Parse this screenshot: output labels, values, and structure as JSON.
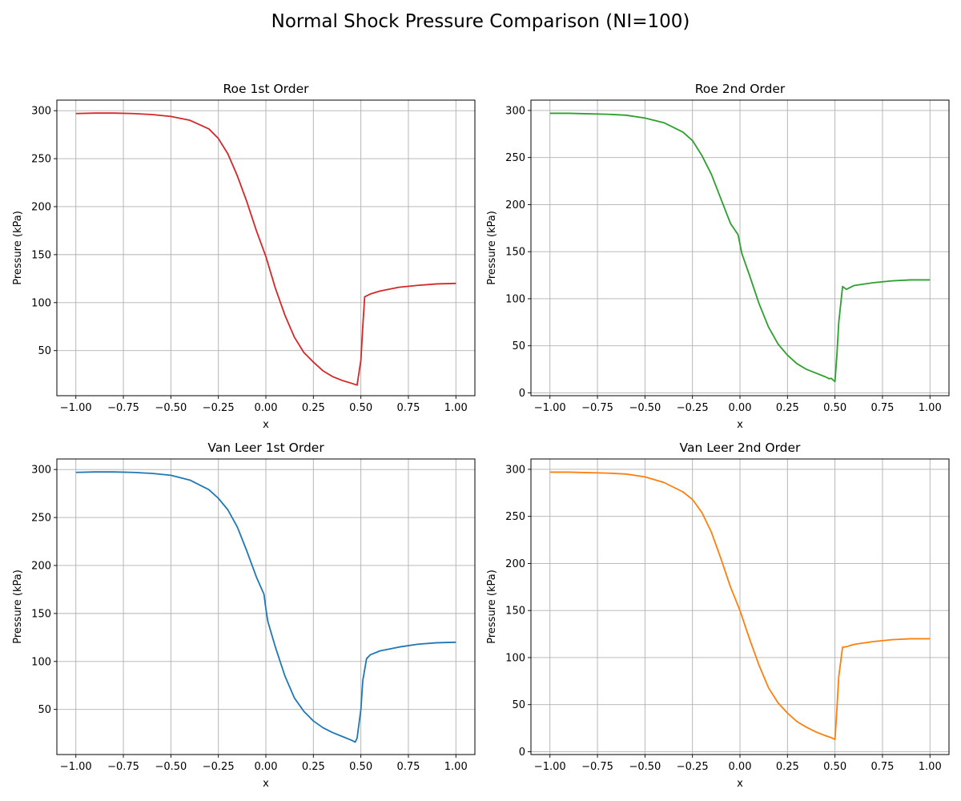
{
  "figure": {
    "title": "Normal Shock Pressure Comparison (NI=100)"
  },
  "chart_data": [
    {
      "type": "line",
      "title": "Roe 1st Order",
      "xlabel": "x",
      "ylabel": "Pressure (kPa)",
      "color": "#d62728",
      "xlim": [
        -1.1,
        1.1
      ],
      "ylim": [
        3,
        311
      ],
      "xticks": [
        -1.0,
        -0.75,
        -0.5,
        -0.25,
        0.0,
        0.25,
        0.5,
        0.75,
        1.0
      ],
      "xtick_labels": [
        "−1.00",
        "−0.75",
        "−0.50",
        "−0.25",
        "0.00",
        "0.25",
        "0.50",
        "0.75",
        "1.00"
      ],
      "yticks": [
        50,
        100,
        150,
        200,
        250,
        300
      ],
      "ytick_labels": [
        "50",
        "100",
        "150",
        "200",
        "250",
        "300"
      ],
      "grid": true,
      "series": [
        {
          "x": [
            -1.0,
            -0.9,
            -0.8,
            -0.7,
            -0.6,
            -0.5,
            -0.4,
            -0.3,
            -0.25,
            -0.2,
            -0.15,
            -0.1,
            -0.05,
            0.0,
            0.05,
            0.1,
            0.15,
            0.2,
            0.25,
            0.3,
            0.35,
            0.4,
            0.45,
            0.48,
            0.5,
            0.51,
            0.52,
            0.55,
            0.6,
            0.7,
            0.8,
            0.9,
            1.0
          ],
          "y": [
            297,
            297.5,
            297.5,
            297,
            296,
            294,
            290,
            281,
            271,
            255,
            232,
            205,
            175,
            148,
            115,
            87,
            64,
            48,
            38,
            29,
            23,
            19,
            16,
            14,
            40,
            75,
            106,
            109,
            112,
            116,
            118,
            119.5,
            120
          ]
        }
      ]
    },
    {
      "type": "line",
      "title": "Roe 2nd Order",
      "xlabel": "x",
      "ylabel": "Pressure (kPa)",
      "color": "#2ca02c",
      "xlim": [
        -1.1,
        1.1
      ],
      "ylim": [
        -3,
        311
      ],
      "xticks": [
        -1.0,
        -0.75,
        -0.5,
        -0.25,
        0.0,
        0.25,
        0.5,
        0.75,
        1.0
      ],
      "xtick_labels": [
        "−1.00",
        "−0.75",
        "−0.50",
        "−0.25",
        "0.00",
        "0.25",
        "0.50",
        "0.75",
        "1.00"
      ],
      "yticks": [
        0,
        50,
        100,
        150,
        200,
        250,
        300
      ],
      "ytick_labels": [
        "0",
        "50",
        "100",
        "150",
        "200",
        "250",
        "300"
      ],
      "grid": true,
      "series": [
        {
          "x": [
            -1.0,
            -0.9,
            -0.8,
            -0.7,
            -0.6,
            -0.5,
            -0.4,
            -0.3,
            -0.25,
            -0.2,
            -0.15,
            -0.1,
            -0.05,
            -0.01,
            0.0,
            0.01,
            0.05,
            0.1,
            0.15,
            0.2,
            0.25,
            0.3,
            0.35,
            0.4,
            0.45,
            0.47,
            0.48,
            0.5,
            0.51,
            0.52,
            0.54,
            0.56,
            0.58,
            0.6,
            0.7,
            0.8,
            0.9,
            1.0
          ],
          "y": [
            297,
            297,
            296.5,
            296,
            295,
            292,
            287,
            277,
            268,
            252,
            232,
            206,
            180,
            168,
            158,
            148,
            125,
            95,
            70,
            52,
            40,
            31,
            25,
            21,
            17,
            15,
            15.5,
            12,
            40,
            75,
            113,
            110,
            112,
            114,
            117,
            119,
            120,
            120
          ]
        }
      ]
    },
    {
      "type": "line",
      "title": "Van Leer 1st Order",
      "xlabel": "x",
      "ylabel": "Pressure (kPa)",
      "color": "#1f77b4",
      "xlim": [
        -1.1,
        1.1
      ],
      "ylim": [
        3,
        311
      ],
      "xticks": [
        -1.0,
        -0.75,
        -0.5,
        -0.25,
        0.0,
        0.25,
        0.5,
        0.75,
        1.0
      ],
      "xtick_labels": [
        "−1.00",
        "−0.75",
        "−0.50",
        "−0.25",
        "0.00",
        "0.25",
        "0.50",
        "0.75",
        "1.00"
      ],
      "yticks": [
        50,
        100,
        150,
        200,
        250,
        300
      ],
      "ytick_labels": [
        "50",
        "100",
        "150",
        "200",
        "250",
        "300"
      ],
      "grid": true,
      "series": [
        {
          "x": [
            -1.0,
            -0.9,
            -0.8,
            -0.7,
            -0.6,
            -0.5,
            -0.4,
            -0.3,
            -0.25,
            -0.2,
            -0.15,
            -0.1,
            -0.05,
            -0.01,
            0.0,
            0.01,
            0.05,
            0.1,
            0.15,
            0.2,
            0.25,
            0.3,
            0.35,
            0.4,
            0.45,
            0.47,
            0.48,
            0.5,
            0.51,
            0.53,
            0.55,
            0.6,
            0.7,
            0.8,
            0.9,
            1.0
          ],
          "y": [
            297,
            297.5,
            297.5,
            297,
            296,
            294,
            289,
            279,
            270,
            258,
            240,
            215,
            188,
            170,
            155,
            142,
            115,
            85,
            62,
            48,
            38,
            31,
            26,
            22,
            18,
            16,
            20,
            50,
            80,
            103,
            107,
            111,
            115,
            118,
            119.5,
            120
          ]
        }
      ]
    },
    {
      "type": "line",
      "title": "Van Leer 2nd Order",
      "xlabel": "x",
      "ylabel": "Pressure (kPa)",
      "color": "#ff7f0e",
      "xlim": [
        -1.1,
        1.1
      ],
      "ylim": [
        -3,
        311
      ],
      "xticks": [
        -1.0,
        -0.75,
        -0.5,
        -0.25,
        0.0,
        0.25,
        0.5,
        0.75,
        1.0
      ],
      "xtick_labels": [
        "−1.00",
        "−0.75",
        "−0.50",
        "−0.25",
        "0.00",
        "0.25",
        "0.50",
        "0.75",
        "1.00"
      ],
      "yticks": [
        0,
        50,
        100,
        150,
        200,
        250,
        300
      ],
      "ytick_labels": [
        "0",
        "50",
        "100",
        "150",
        "200",
        "250",
        "300"
      ],
      "grid": true,
      "series": [
        {
          "x": [
            -1.0,
            -0.9,
            -0.8,
            -0.7,
            -0.6,
            -0.5,
            -0.4,
            -0.3,
            -0.25,
            -0.2,
            -0.15,
            -0.1,
            -0.05,
            0.0,
            0.05,
            0.1,
            0.15,
            0.2,
            0.25,
            0.3,
            0.35,
            0.4,
            0.45,
            0.48,
            0.5,
            0.51,
            0.52,
            0.54,
            0.56,
            0.6,
            0.7,
            0.8,
            0.9,
            1.0
          ],
          "y": [
            297,
            297,
            296.5,
            296,
            295,
            292,
            286,
            276,
            268,
            254,
            233,
            205,
            175,
            150,
            120,
            92,
            68,
            52,
            41,
            32,
            26,
            21,
            17,
            15,
            13,
            45,
            80,
            111,
            111.5,
            114,
            117,
            119,
            120,
            120
          ]
        }
      ]
    }
  ]
}
